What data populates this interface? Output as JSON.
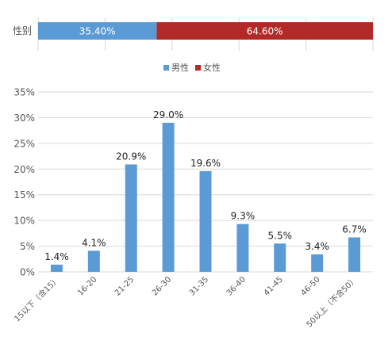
{
  "chart_data": [
    {
      "type": "bar",
      "orientation": "horizontal-stacked",
      "categories": [
        "性别"
      ],
      "series": [
        {
          "name": "男性",
          "values": [
            35.4
          ],
          "color": "#5b9bd5",
          "label": "35.40%"
        },
        {
          "name": "女性",
          "values": [
            64.6
          ],
          "color": "#b22a28",
          "label": "64.60%"
        }
      ],
      "xlim": [
        0,
        100
      ],
      "grid": true,
      "legend": "bottom"
    },
    {
      "type": "bar",
      "categories": [
        "15以下（含15）",
        "16-20",
        "21-25",
        "26-30",
        "31-35",
        "36-40",
        "41-45",
        "46-50",
        "50以上（不含50）"
      ],
      "values": [
        1.4,
        4.1,
        20.9,
        29.0,
        19.6,
        9.3,
        5.5,
        3.4,
        6.7
      ],
      "data_labels": [
        "1.4%",
        "4.1%",
        "20.9%",
        "29.0%",
        "19.6%",
        "9.3%",
        "5.5%",
        "3.4%",
        "6.7%"
      ],
      "y_ticks": [
        "0%",
        "5%",
        "10%",
        "15%",
        "20%",
        "25%",
        "30%",
        "35%"
      ],
      "ylim": [
        0,
        35
      ],
      "grid": true,
      "color": "#5b9bd5"
    }
  ]
}
